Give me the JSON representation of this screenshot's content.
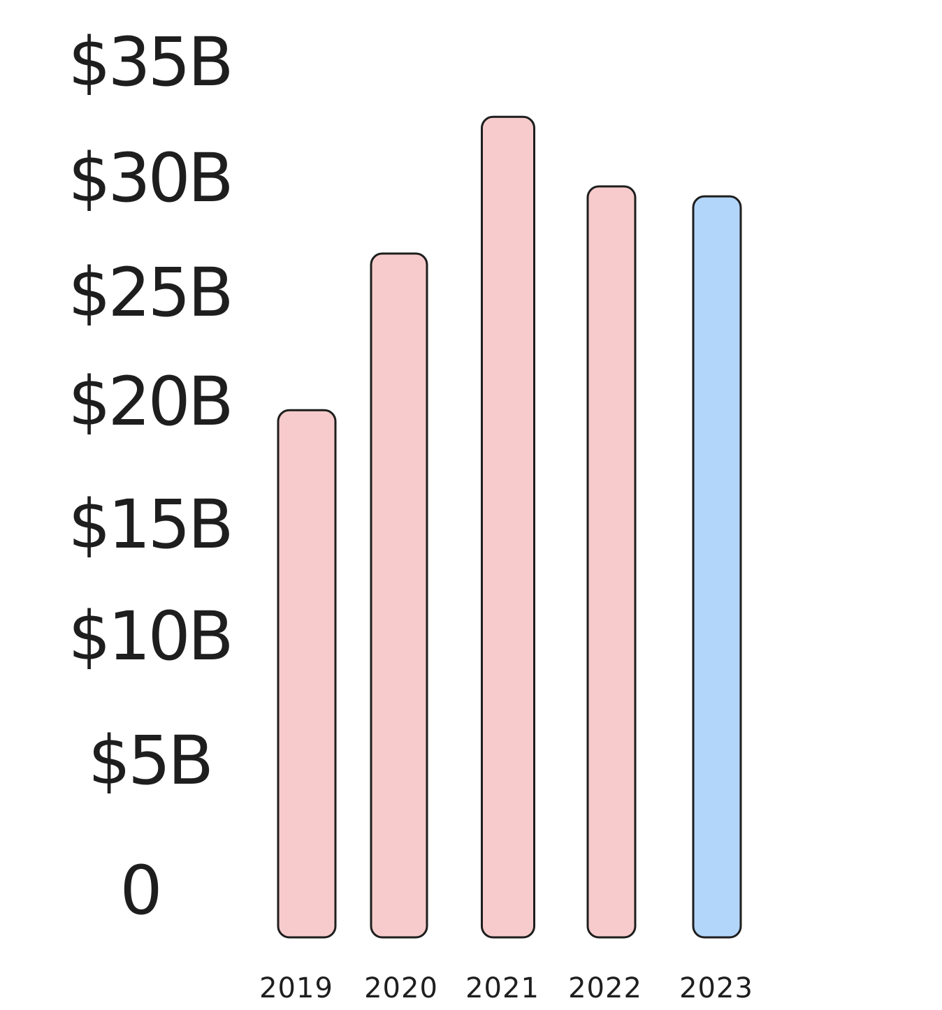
{
  "chart_data": {
    "type": "bar",
    "categories": [
      "2019",
      "2020",
      "2021",
      "2022",
      "2023"
    ],
    "values": [
      21.2,
      27.5,
      33.0,
      30.2,
      29.8
    ],
    "title": "",
    "xlabel": "",
    "ylabel": "",
    "ylim": [
      0,
      35
    ],
    "y_ticks": [
      {
        "value": 35,
        "label": "$35B"
      },
      {
        "value": 30,
        "label": "$30B"
      },
      {
        "value": 25,
        "label": "$25B"
      },
      {
        "value": 20,
        "label": "$20B"
      },
      {
        "value": 15,
        "label": "$15B"
      },
      {
        "value": 10,
        "label": "$10B"
      },
      {
        "value": 5,
        "label": "$5B"
      },
      {
        "value": 0,
        "label": "0"
      }
    ],
    "bar_colors": [
      "#f7cbcb",
      "#f7cbcb",
      "#f7cbcb",
      "#f7cbcb",
      "#b2d6f9"
    ],
    "outline_color": "#1e1e1e",
    "grid": false,
    "legend": "none"
  }
}
